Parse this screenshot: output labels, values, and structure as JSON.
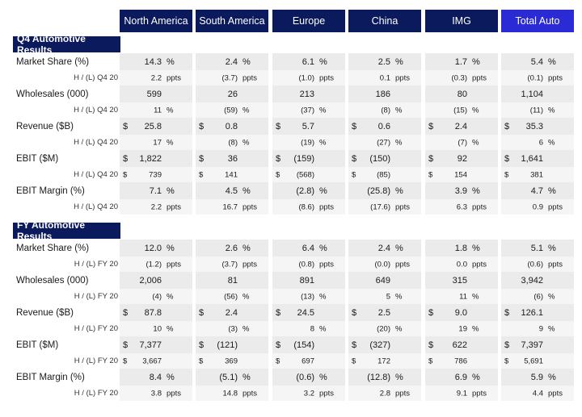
{
  "columns": [
    "North America",
    "South America",
    "Europe",
    "China",
    "IMG",
    "Total Auto"
  ],
  "sections": [
    {
      "title": "Q4 Automotive Results",
      "metrics": [
        {
          "label": "Market Share (%)",
          "values": [
            {
              "pre": "",
              "val": "14.3",
              "unit": "%"
            },
            {
              "pre": "",
              "val": "2.4",
              "unit": "%"
            },
            {
              "pre": "",
              "val": "6.1",
              "unit": "%"
            },
            {
              "pre": "",
              "val": "2.5",
              "unit": "%"
            },
            {
              "pre": "",
              "val": "1.7",
              "unit": "%"
            },
            {
              "pre": "",
              "val": "5.4",
              "unit": "%"
            }
          ],
          "sub_label": "H / (L) Q4 20",
          "sub_values": [
            {
              "pre": "",
              "val": "2.2",
              "unit": "ppts"
            },
            {
              "pre": "",
              "val": "(3.7)",
              "unit": "ppts"
            },
            {
              "pre": "",
              "val": "(1.0)",
              "unit": "ppts"
            },
            {
              "pre": "",
              "val": "0.1",
              "unit": "ppts"
            },
            {
              "pre": "",
              "val": "(0.3)",
              "unit": "ppts"
            },
            {
              "pre": "",
              "val": "(0.1)",
              "unit": "ppts"
            }
          ]
        },
        {
          "label": "Wholesales (000)",
          "values": [
            {
              "pre": "",
              "val": "599",
              "unit": ""
            },
            {
              "pre": "",
              "val": "26",
              "unit": ""
            },
            {
              "pre": "",
              "val": "213",
              "unit": ""
            },
            {
              "pre": "",
              "val": "186",
              "unit": ""
            },
            {
              "pre": "",
              "val": "80",
              "unit": ""
            },
            {
              "pre": "",
              "val": "1,104",
              "unit": ""
            }
          ],
          "sub_label": "H / (L) Q4 20",
          "sub_values": [
            {
              "pre": "",
              "val": "11",
              "unit": "%"
            },
            {
              "pre": "",
              "val": "(59)",
              "unit": "%"
            },
            {
              "pre": "",
              "val": "(37)",
              "unit": "%"
            },
            {
              "pre": "",
              "val": "(8)",
              "unit": "%"
            },
            {
              "pre": "",
              "val": "(15)",
              "unit": "%"
            },
            {
              "pre": "",
              "val": "(11)",
              "unit": "%"
            }
          ]
        },
        {
          "label": "Revenue ($B)",
          "values": [
            {
              "pre": "$",
              "val": "25.8",
              "unit": ""
            },
            {
              "pre": "$",
              "val": "0.8",
              "unit": ""
            },
            {
              "pre": "$",
              "val": "5.7",
              "unit": ""
            },
            {
              "pre": "$",
              "val": "0.6",
              "unit": ""
            },
            {
              "pre": "$",
              "val": "2.4",
              "unit": ""
            },
            {
              "pre": "$",
              "val": "35.3",
              "unit": ""
            }
          ],
          "sub_label": "H / (L) Q4 20",
          "sub_values": [
            {
              "pre": "",
              "val": "17",
              "unit": "%"
            },
            {
              "pre": "",
              "val": "(8)",
              "unit": "%"
            },
            {
              "pre": "",
              "val": "(19)",
              "unit": "%"
            },
            {
              "pre": "",
              "val": "(27)",
              "unit": "%"
            },
            {
              "pre": "",
              "val": "(7)",
              "unit": "%"
            },
            {
              "pre": "",
              "val": "6",
              "unit": "%"
            }
          ]
        },
        {
          "label": "EBIT ($M)",
          "values": [
            {
              "pre": "$",
              "val": "1,822",
              "unit": ""
            },
            {
              "pre": "$",
              "val": "36",
              "unit": ""
            },
            {
              "pre": "$",
              "val": "(159)",
              "unit": ""
            },
            {
              "pre": "$",
              "val": "(150)",
              "unit": ""
            },
            {
              "pre": "$",
              "val": "92",
              "unit": ""
            },
            {
              "pre": "$",
              "val": "1,641",
              "unit": ""
            }
          ],
          "sub_label": "H / (L) Q4 20",
          "sub_values": [
            {
              "pre": "$",
              "val": "739",
              "unit": ""
            },
            {
              "pre": "$",
              "val": "141",
              "unit": ""
            },
            {
              "pre": "$",
              "val": "(568)",
              "unit": ""
            },
            {
              "pre": "$",
              "val": "(85)",
              "unit": ""
            },
            {
              "pre": "$",
              "val": "154",
              "unit": ""
            },
            {
              "pre": "$",
              "val": "381",
              "unit": ""
            }
          ]
        },
        {
          "label": "EBIT Margin (%)",
          "values": [
            {
              "pre": "",
              "val": "7.1",
              "unit": "%"
            },
            {
              "pre": "",
              "val": "4.5",
              "unit": "%"
            },
            {
              "pre": "",
              "val": "(2.8)",
              "unit": "%"
            },
            {
              "pre": "",
              "val": "(25.8)",
              "unit": "%"
            },
            {
              "pre": "",
              "val": "3.9",
              "unit": "%"
            },
            {
              "pre": "",
              "val": "4.7",
              "unit": "%"
            }
          ],
          "sub_label": "H / (L) Q4 20",
          "sub_values": [
            {
              "pre": "",
              "val": "2.2",
              "unit": "ppts"
            },
            {
              "pre": "",
              "val": "16.7",
              "unit": "ppts"
            },
            {
              "pre": "",
              "val": "(8.6)",
              "unit": "ppts"
            },
            {
              "pre": "",
              "val": "(17.6)",
              "unit": "ppts"
            },
            {
              "pre": "",
              "val": "6.3",
              "unit": "ppts"
            },
            {
              "pre": "",
              "val": "0.9",
              "unit": "ppts"
            }
          ]
        }
      ]
    },
    {
      "title": "FY Automotive Results",
      "metrics": [
        {
          "label": "Market Share (%)",
          "values": [
            {
              "pre": "",
              "val": "12.0",
              "unit": "%"
            },
            {
              "pre": "",
              "val": "2.6",
              "unit": "%"
            },
            {
              "pre": "",
              "val": "6.4",
              "unit": "%"
            },
            {
              "pre": "",
              "val": "2.4",
              "unit": "%"
            },
            {
              "pre": "",
              "val": "1.8",
              "unit": "%"
            },
            {
              "pre": "",
              "val": "5.1",
              "unit": "%"
            }
          ],
          "sub_label": "H / (L) FY 20",
          "sub_values": [
            {
              "pre": "",
              "val": "(1.2)",
              "unit": "ppts"
            },
            {
              "pre": "",
              "val": "(3.7)",
              "unit": "ppts"
            },
            {
              "pre": "",
              "val": "(0.8)",
              "unit": "ppts"
            },
            {
              "pre": "",
              "val": "(0.0)",
              "unit": "ppts"
            },
            {
              "pre": "",
              "val": "0.0",
              "unit": "ppts"
            },
            {
              "pre": "",
              "val": "(0.6)",
              "unit": "ppts"
            }
          ]
        },
        {
          "label": "Wholesales (000)",
          "values": [
            {
              "pre": "",
              "val": "2,006",
              "unit": ""
            },
            {
              "pre": "",
              "val": "81",
              "unit": ""
            },
            {
              "pre": "",
              "val": "891",
              "unit": ""
            },
            {
              "pre": "",
              "val": "649",
              "unit": ""
            },
            {
              "pre": "",
              "val": "315",
              "unit": ""
            },
            {
              "pre": "",
              "val": "3,942",
              "unit": ""
            }
          ],
          "sub_label": "H / (L) FY 20",
          "sub_values": [
            {
              "pre": "",
              "val": "(4)",
              "unit": "%"
            },
            {
              "pre": "",
              "val": "(56)",
              "unit": "%"
            },
            {
              "pre": "",
              "val": "(13)",
              "unit": "%"
            },
            {
              "pre": "",
              "val": "5",
              "unit": "%"
            },
            {
              "pre": "",
              "val": "11",
              "unit": "%"
            },
            {
              "pre": "",
              "val": "(6)",
              "unit": "%"
            }
          ]
        },
        {
          "label": "Revenue ($B)",
          "values": [
            {
              "pre": "$",
              "val": "87.8",
              "unit": ""
            },
            {
              "pre": "$",
              "val": "2.4",
              "unit": ""
            },
            {
              "pre": "$",
              "val": "24.5",
              "unit": ""
            },
            {
              "pre": "$",
              "val": "2.5",
              "unit": ""
            },
            {
              "pre": "$",
              "val": "9.0",
              "unit": ""
            },
            {
              "pre": "$",
              "val": "126.1",
              "unit": ""
            }
          ],
          "sub_label": "H / (L) FY 20",
          "sub_values": [
            {
              "pre": "",
              "val": "10",
              "unit": "%"
            },
            {
              "pre": "",
              "val": "(3)",
              "unit": "%"
            },
            {
              "pre": "",
              "val": "8",
              "unit": "%"
            },
            {
              "pre": "",
              "val": "(20)",
              "unit": "%"
            },
            {
              "pre": "",
              "val": "19",
              "unit": "%"
            },
            {
              "pre": "",
              "val": "9",
              "unit": "%"
            }
          ]
        },
        {
          "label": "EBIT ($M)",
          "values": [
            {
              "pre": "$",
              "val": "7,377",
              "unit": ""
            },
            {
              "pre": "$",
              "val": "(121)",
              "unit": ""
            },
            {
              "pre": "$",
              "val": "(154)",
              "unit": ""
            },
            {
              "pre": "$",
              "val": "(327)",
              "unit": ""
            },
            {
              "pre": "$",
              "val": "622",
              "unit": ""
            },
            {
              "pre": "$",
              "val": "7,397",
              "unit": ""
            }
          ],
          "sub_label": "H / (L) FY 20",
          "sub_values": [
            {
              "pre": "$",
              "val": "3,667",
              "unit": ""
            },
            {
              "pre": "$",
              "val": "369",
              "unit": ""
            },
            {
              "pre": "$",
              "val": "697",
              "unit": ""
            },
            {
              "pre": "$",
              "val": "172",
              "unit": ""
            },
            {
              "pre": "$",
              "val": "786",
              "unit": ""
            },
            {
              "pre": "$",
              "val": "5,691",
              "unit": ""
            }
          ]
        },
        {
          "label": "EBIT Margin (%)",
          "values": [
            {
              "pre": "",
              "val": "8.4",
              "unit": "%"
            },
            {
              "pre": "",
              "val": "(5.1)",
              "unit": "%"
            },
            {
              "pre": "",
              "val": "(0.6)",
              "unit": "%"
            },
            {
              "pre": "",
              "val": "(12.8)",
              "unit": "%"
            },
            {
              "pre": "",
              "val": "6.9",
              "unit": "%"
            },
            {
              "pre": "",
              "val": "5.9",
              "unit": "%"
            }
          ],
          "sub_label": "H / (L) FY 20",
          "sub_values": [
            {
              "pre": "",
              "val": "3.8",
              "unit": "ppts"
            },
            {
              "pre": "",
              "val": "14.8",
              "unit": "ppts"
            },
            {
              "pre": "",
              "val": "3.2",
              "unit": "ppts"
            },
            {
              "pre": "",
              "val": "2.8",
              "unit": "ppts"
            },
            {
              "pre": "",
              "val": "9.1",
              "unit": "ppts"
            },
            {
              "pre": "",
              "val": "4.4",
              "unit": "ppts"
            }
          ]
        }
      ]
    }
  ]
}
